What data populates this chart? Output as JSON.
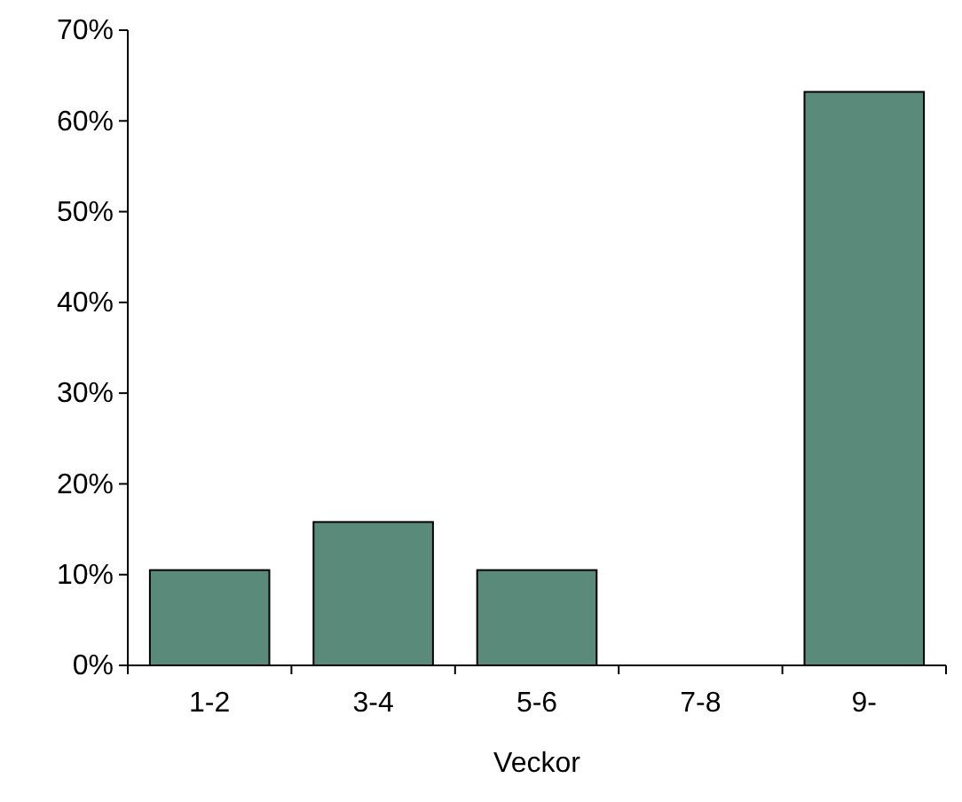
{
  "chart_data": {
    "type": "bar",
    "xlabel": "Veckor",
    "categories": [
      "1-2",
      "3-4",
      "5-6",
      "7-8",
      "9-"
    ],
    "values": [
      10.5,
      15.8,
      10.5,
      0,
      63.2
    ],
    "color": "#5a8a7a",
    "ylim": [
      0,
      70
    ],
    "yticks": [
      {
        "value": 0,
        "label": "0%"
      },
      {
        "value": 10,
        "label": "10%"
      },
      {
        "value": 20,
        "label": "20%"
      },
      {
        "value": 30,
        "label": "30%"
      },
      {
        "value": 40,
        "label": "40%"
      },
      {
        "value": 50,
        "label": "50%"
      },
      {
        "value": 60,
        "label": "60%"
      },
      {
        "value": 70,
        "label": "70%"
      }
    ],
    "grid": false
  }
}
